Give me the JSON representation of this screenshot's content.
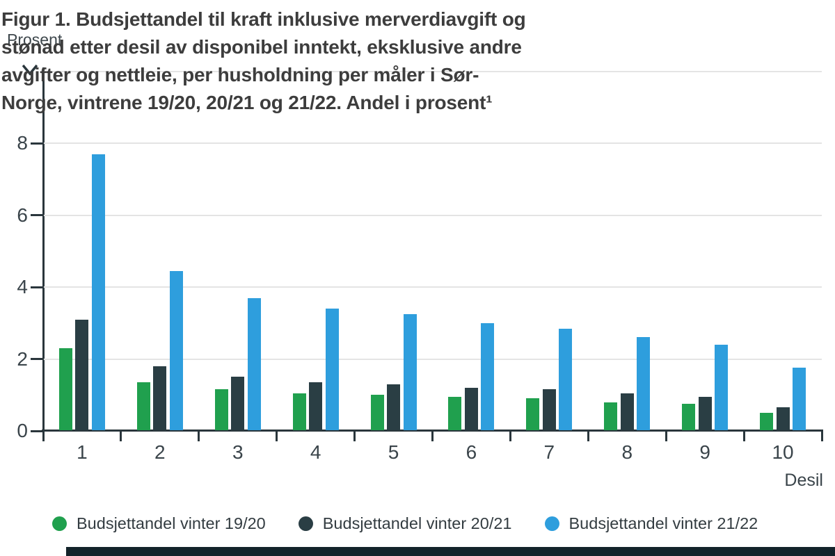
{
  "title": {
    "line1": "Figur 1. Budsjettandel til kraft inklusive merverdiavgift og",
    "line2": "stønad etter desil av disponibel inntekt, eksklusive andre",
    "line3": "avgifter og nettleie, per husholdning per måler i Sør-",
    "line4": "Norge, vintrene 19/20, 20/21 og 21/22. Andel i prosent¹"
  },
  "axes": {
    "y_label": "Prosent",
    "x_label": "Desil"
  },
  "chart_data": {
    "type": "bar",
    "title": "Figur 1. Budsjettandel til kraft inklusive merverdiavgift og stønad etter desil av disponibel inntekt, eksklusive andre avgifter og nettleie, per husholdning per måler i Sør-Norge, vintrene 19/20, 20/21 og 21/22. Andel i prosent¹",
    "ylabel": "Prosent",
    "xlabel": "Desil",
    "categories": [
      "1",
      "2",
      "3",
      "4",
      "5",
      "6",
      "7",
      "8",
      "9",
      "10"
    ],
    "series": [
      {
        "name": "Budsjettandel vinter 19/20",
        "color": "#20a04e",
        "values": [
          2.3,
          1.35,
          1.15,
          1.05,
          1.0,
          0.95,
          0.9,
          0.8,
          0.75,
          0.5
        ]
      },
      {
        "name": "Budsjettandel vinter 20/21",
        "color": "#2a3e44",
        "values": [
          3.1,
          1.8,
          1.5,
          1.35,
          1.3,
          1.2,
          1.15,
          1.05,
          0.95,
          0.65
        ]
      },
      {
        "name": "Budsjettandel vinter 21/22",
        "color": "#2e9edd",
        "values": [
          7.7,
          4.45,
          3.7,
          3.4,
          3.25,
          3.0,
          2.85,
          2.6,
          2.4,
          1.75
        ]
      }
    ],
    "ylim": [
      0,
      10
    ],
    "yticks": [
      0,
      2,
      4,
      6,
      8
    ],
    "gridline_values": [
      2,
      4,
      6,
      8,
      10
    ],
    "grid": true,
    "legend_position": "bottom"
  },
  "colors": {
    "axis": "#2a363c",
    "grid": "#e4e4e4",
    "title_text": "#3d3d3d",
    "tick_text": "#3a444a"
  }
}
